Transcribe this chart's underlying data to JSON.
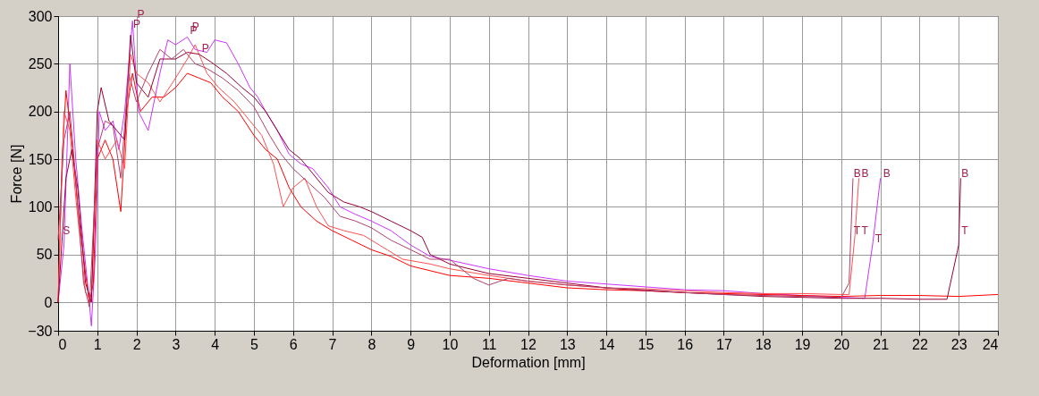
{
  "chart_data": {
    "type": "line",
    "xlabel": "Deformation [mm]",
    "ylabel": "Force [N]",
    "xlim": [
      0,
      24
    ],
    "ylim": [
      -30,
      300
    ],
    "xticks": [
      0,
      1,
      2,
      3,
      4,
      5,
      6,
      7,
      8,
      9,
      10,
      11,
      12,
      13,
      14,
      15,
      16,
      17,
      18,
      19,
      20,
      21,
      22,
      23,
      24
    ],
    "yticks": [
      -30,
      0,
      50,
      100,
      150,
      200,
      250,
      300
    ],
    "grid": true,
    "legend": false,
    "marker": "none",
    "line_style": "solid",
    "series": [
      {
        "color": "#cc33ff",
        "x": [
          0,
          0.15,
          0.3,
          0.45,
          0.6,
          0.75,
          0.85,
          0.95,
          1.05,
          1.2,
          1.4,
          1.55,
          1.7,
          1.9,
          2.05,
          2.3,
          2.6,
          2.8,
          3.0,
          3.3,
          3.5,
          3.8,
          4.0,
          4.3,
          4.6,
          4.9,
          5.1,
          5.3,
          5.6,
          5.9,
          6.2,
          6.5,
          6.9,
          7.2,
          7.6,
          8.0,
          8.5,
          9.0,
          9.5,
          10,
          11,
          12,
          13,
          14,
          15,
          16,
          17,
          18,
          19,
          20,
          20.6,
          20.8,
          21
        ],
        "values": [
          0,
          60,
          250,
          150,
          80,
          20,
          -25,
          50,
          200,
          180,
          190,
          160,
          200,
          295,
          200,
          180,
          240,
          275,
          270,
          278,
          265,
          262,
          275,
          272,
          250,
          225,
          215,
          200,
          180,
          155,
          145,
          140,
          120,
          100,
          92,
          85,
          75,
          60,
          48,
          44,
          35,
          28,
          22,
          19,
          16,
          13,
          12,
          9,
          7,
          5,
          4,
          60,
          130
        ]
      },
      {
        "color": "#ff0000",
        "x": [
          0,
          0.1,
          0.2,
          0.35,
          0.5,
          0.7,
          0.8,
          0.9,
          1.0,
          1.2,
          1.4,
          1.6,
          1.75,
          1.9,
          2.1,
          2.4,
          2.7,
          3.0,
          3.3,
          3.6,
          3.9,
          4.2,
          4.6,
          5.0,
          5.3,
          5.6,
          5.9,
          6.2,
          6.6,
          7.0,
          7.5,
          8.0,
          8.5,
          9.0,
          9.5,
          10,
          11,
          12,
          13,
          14,
          15,
          16,
          17,
          18,
          19,
          20,
          21,
          22,
          23,
          24
        ],
        "values": [
          0,
          150,
          222,
          170,
          100,
          30,
          0,
          20,
          150,
          170,
          150,
          95,
          200,
          240,
          200,
          215,
          215,
          225,
          240,
          235,
          230,
          215,
          200,
          175,
          160,
          150,
          120,
          100,
          85,
          75,
          65,
          55,
          48,
          38,
          33,
          28,
          25,
          20,
          15,
          13,
          12,
          10,
          9,
          8,
          7,
          6,
          7,
          7,
          6,
          8
        ]
      },
      {
        "color": "#ff5050",
        "x": [
          0,
          0.15,
          0.3,
          0.45,
          0.7,
          0.85,
          1.0,
          1.2,
          1.5,
          1.7,
          1.85,
          2.0,
          2.3,
          2.6,
          3.0,
          3.3,
          3.5,
          3.8,
          4.1,
          4.5,
          4.9,
          5.2,
          5.5,
          5.75,
          6.0,
          6.3,
          6.6,
          6.9,
          7.3,
          7.8,
          8.2,
          8.8,
          9.5,
          10,
          11,
          12,
          13,
          14,
          15,
          16,
          17,
          18,
          19,
          20,
          20.2,
          20.35,
          20.45
        ],
        "values": [
          0,
          200,
          180,
          110,
          10,
          0,
          170,
          150,
          170,
          140,
          260,
          240,
          230,
          210,
          235,
          255,
          270,
          240,
          225,
          210,
          190,
          175,
          145,
          100,
          120,
          130,
          100,
          80,
          75,
          70,
          60,
          45,
          40,
          35,
          28,
          22,
          18,
          15,
          14,
          12,
          10,
          9,
          9,
          8,
          8,
          70,
          130
        ]
      },
      {
        "color": "#990033",
        "x": [
          0,
          0.2,
          0.35,
          0.5,
          0.7,
          0.85,
          1.0,
          1.1,
          1.3,
          1.5,
          1.7,
          1.85,
          2.0,
          2.3,
          2.6,
          3.0,
          3.3,
          3.6,
          3.9,
          4.3,
          4.7,
          5.0,
          5.3,
          5.6,
          5.9,
          6.2,
          6.5,
          6.9,
          7.3,
          7.7,
          8.0,
          8.5,
          9.0,
          9.3,
          9.5,
          10,
          11,
          12,
          13,
          14,
          15,
          16,
          17,
          18,
          19,
          20,
          21,
          22,
          22.7,
          23,
          23.05
        ],
        "values": [
          0,
          130,
          160,
          120,
          20,
          0,
          200,
          225,
          190,
          180,
          170,
          280,
          230,
          215,
          255,
          255,
          262,
          260,
          252,
          240,
          225,
          215,
          200,
          180,
          160,
          150,
          135,
          115,
          105,
          100,
          95,
          85,
          75,
          68,
          50,
          40,
          30,
          25,
          20,
          15,
          12,
          10,
          8,
          6,
          5,
          4,
          4,
          3,
          3,
          60,
          130
        ]
      },
      {
        "color": "#b0406a",
        "x": [
          0,
          0.15,
          0.3,
          0.45,
          0.65,
          0.8,
          1.0,
          1.2,
          1.4,
          1.6,
          1.8,
          2.0,
          2.3,
          2.6,
          2.9,
          3.2,
          3.5,
          3.8,
          4.2,
          4.6,
          5.0,
          5.4,
          5.7,
          6.0,
          6.4,
          6.8,
          7.2,
          7.6,
          8.0,
          8.5,
          9.0,
          9.5,
          10,
          10.3,
          10.6,
          11,
          11.5,
          12,
          13,
          14,
          15,
          16,
          17,
          18,
          19,
          20,
          20.2,
          20.3
        ],
        "values": [
          65,
          170,
          200,
          130,
          20,
          -5,
          160,
          190,
          185,
          130,
          240,
          210,
          240,
          265,
          255,
          265,
          250,
          245,
          235,
          222,
          205,
          175,
          155,
          140,
          125,
          110,
          90,
          85,
          78,
          65,
          55,
          45,
          45,
          35,
          25,
          18,
          25,
          22,
          18,
          15,
          13,
          10,
          8,
          7,
          6,
          5,
          20,
          130
        ]
      }
    ],
    "annotations": [
      {
        "text": "S",
        "x": 0.05,
        "y": 68
      },
      {
        "text": "P",
        "x": 1.95,
        "y": 295
      },
      {
        "text": "P",
        "x": 1.85,
        "y": 285
      },
      {
        "text": "P",
        "x": 3.35,
        "y": 282
      },
      {
        "text": "P",
        "x": 3.6,
        "y": 260
      },
      {
        "text": "P",
        "x": 3.3,
        "y": 278
      },
      {
        "text": "B",
        "x": 20.25,
        "y": 128
      },
      {
        "text": "B",
        "x": 20.45,
        "y": 128
      },
      {
        "text": "B",
        "x": 21.0,
        "y": 128
      },
      {
        "text": "B",
        "x": 23.0,
        "y": 128
      },
      {
        "text": "T",
        "x": 20.25,
        "y": 68
      },
      {
        "text": "T",
        "x": 20.45,
        "y": 68
      },
      {
        "text": "T",
        "x": 20.8,
        "y": 60
      },
      {
        "text": "T",
        "x": 23.0,
        "y": 68
      }
    ]
  }
}
